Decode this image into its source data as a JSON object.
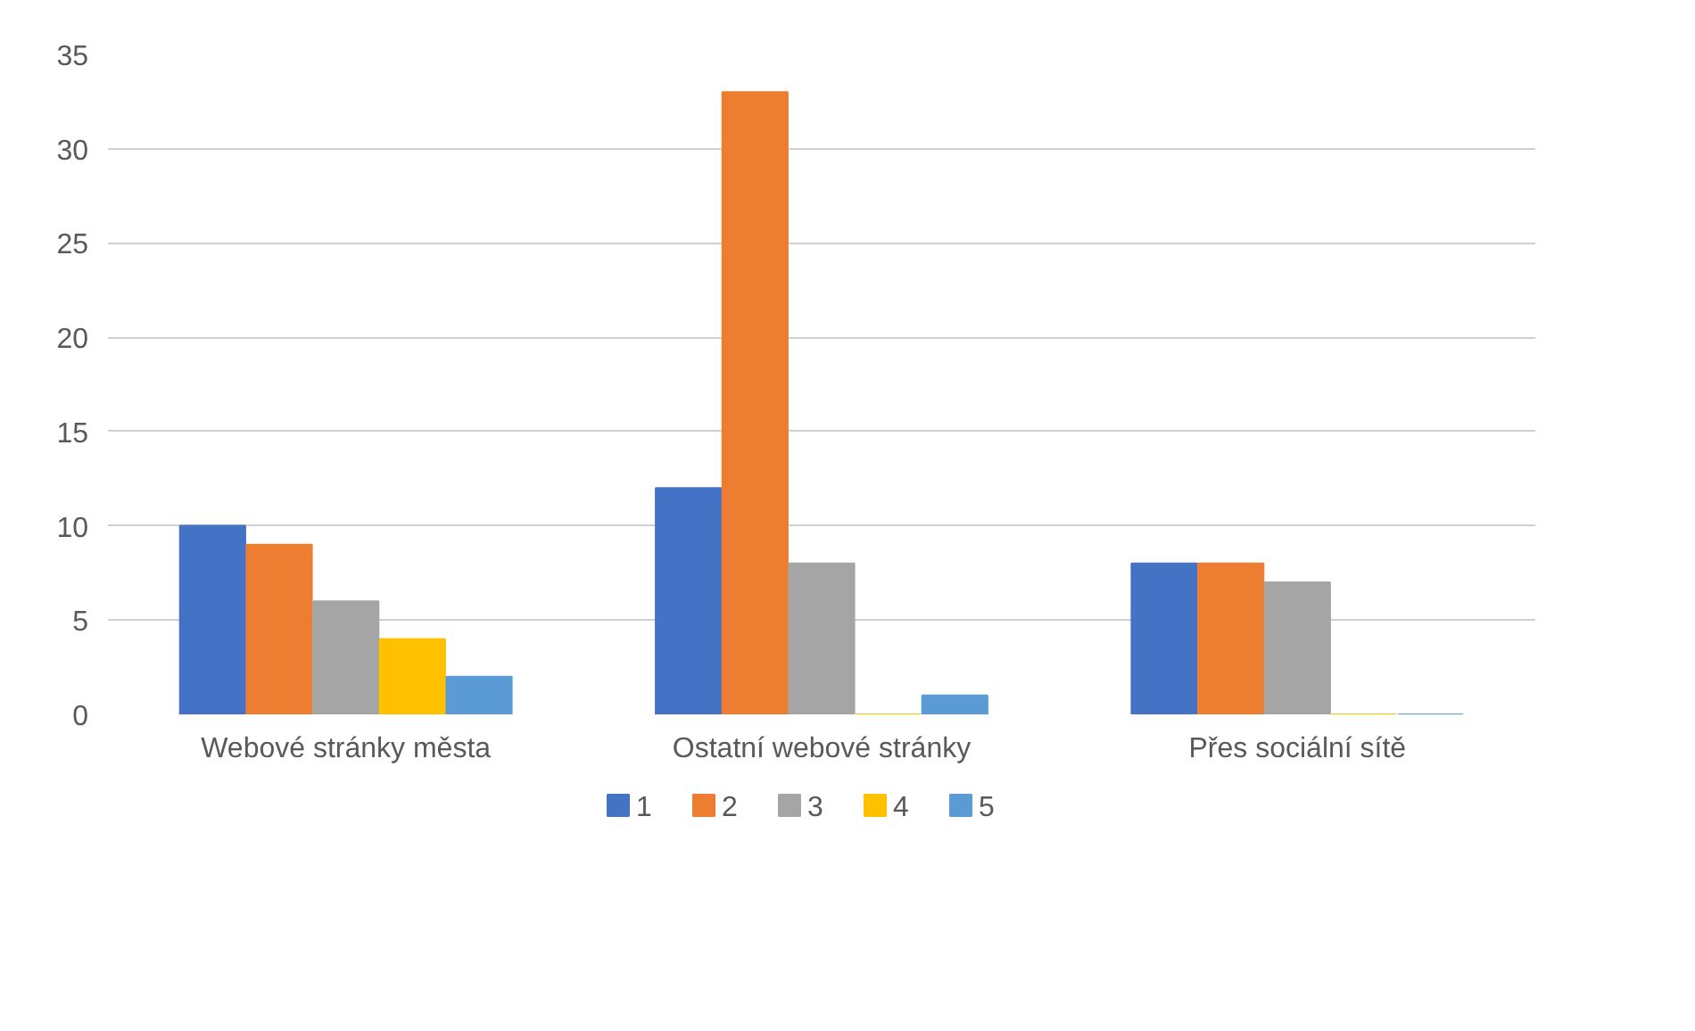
{
  "chart_data": {
    "type": "bar",
    "categories": [
      "Webové stránky města",
      "Ostatní webové stránky",
      "Přes sociální sítě"
    ],
    "series": [
      {
        "name": "1",
        "color": "#4472c4",
        "values": [
          10,
          12,
          8
        ]
      },
      {
        "name": "2",
        "color": "#ed7d31",
        "values": [
          9,
          33,
          8
        ]
      },
      {
        "name": "3",
        "color": "#a5a5a5",
        "values": [
          6,
          8,
          7
        ]
      },
      {
        "name": "4",
        "color": "#ffc000",
        "values": [
          4,
          0,
          0
        ]
      },
      {
        "name": "5",
        "color": "#5b9bd5",
        "values": [
          2,
          1,
          0
        ]
      }
    ],
    "ylim": [
      0,
      35
    ],
    "yticks": [
      0,
      5,
      10,
      15,
      20,
      25,
      30,
      35
    ],
    "grid": "y",
    "legend": "bottom"
  }
}
